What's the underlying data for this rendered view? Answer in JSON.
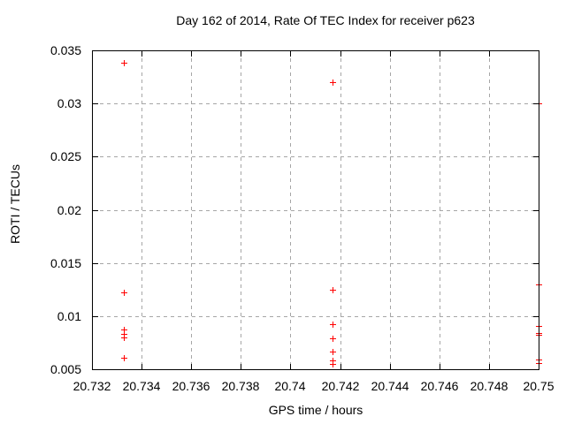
{
  "chart_data": {
    "type": "scatter",
    "title": "Day 162 of 2014, Rate Of TEC Index for receiver p623",
    "xlabel": "GPS time / hours",
    "ylabel": "ROTI / TECUs",
    "xlim": [
      20.732,
      20.75
    ],
    "ylim": [
      0.005,
      0.035
    ],
    "xticks": [
      20.732,
      20.734,
      20.736,
      20.738,
      20.74,
      20.742,
      20.744,
      20.746,
      20.748,
      20.75
    ],
    "xtick_labels": [
      "20.732",
      "20.734",
      "20.736",
      "20.738",
      "20.74",
      "20.742",
      "20.744",
      "20.746",
      "20.748",
      "20.75"
    ],
    "yticks": [
      0.005,
      0.01,
      0.015,
      0.02,
      0.025,
      0.03,
      0.035
    ],
    "ytick_labels": [
      "0.005",
      "0.01",
      "0.015",
      "0.02",
      "0.025",
      "0.03",
      "0.035"
    ],
    "grid": true,
    "legend": "none",
    "marker": "plus",
    "marker_size": 7,
    "marker_color": "#ff0000",
    "grid_color": "#a6a6a6",
    "axis_color": "#000000",
    "background_color": "#ffffff",
    "series": [
      {
        "name": "ROTI",
        "points": [
          [
            20.7333,
            0.0338
          ],
          [
            20.7333,
            0.0122
          ],
          [
            20.7333,
            0.0087
          ],
          [
            20.7333,
            0.0083
          ],
          [
            20.7333,
            0.008
          ],
          [
            20.7333,
            0.0061
          ],
          [
            20.7417,
            0.032
          ],
          [
            20.7417,
            0.0125
          ],
          [
            20.7417,
            0.0092
          ],
          [
            20.7417,
            0.0079
          ],
          [
            20.7417,
            0.0067
          ],
          [
            20.7417,
            0.0058
          ],
          [
            20.7417,
            0.0055
          ],
          [
            20.75,
            0.03
          ],
          [
            20.75,
            0.013
          ],
          [
            20.75,
            0.0091
          ],
          [
            20.75,
            0.0084
          ],
          [
            20.75,
            0.0082
          ],
          [
            20.75,
            0.0059
          ],
          [
            20.75,
            0.0056
          ]
        ]
      }
    ]
  }
}
